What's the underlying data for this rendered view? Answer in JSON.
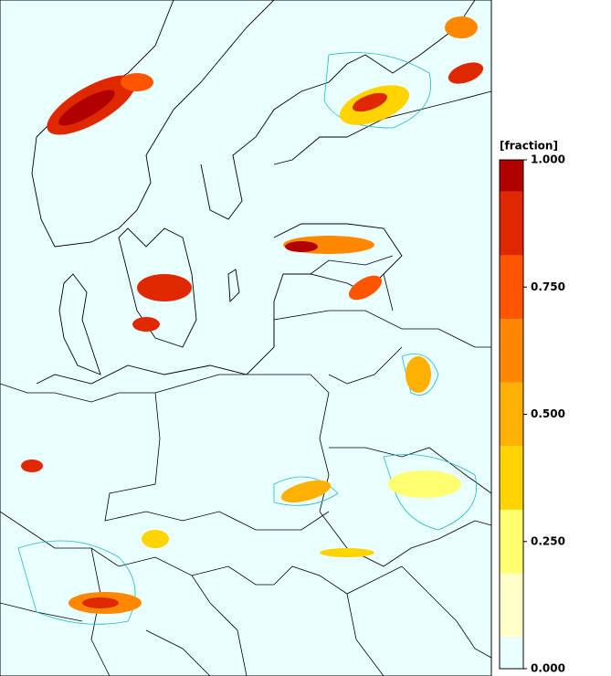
{
  "colorbar": {
    "title": "[fraction]",
    "ticks": [
      {
        "value": 0,
        "label": "0.000"
      },
      {
        "value": 0.25,
        "label": "0.250"
      },
      {
        "value": 0.5,
        "label": "0.500"
      },
      {
        "value": 0.75,
        "label": "0.750"
      },
      {
        "value": 1,
        "label": "1.000"
      }
    ],
    "lim": [
      0,
      1
    ],
    "levels": [
      0,
      0.0625,
      0.1875,
      0.3125,
      0.4375,
      0.5625,
      0.6875,
      0.8125,
      0.9375,
      1
    ],
    "colors": [
      "#eaffff",
      "#ffffc8",
      "#ffff70",
      "#ffd400",
      "#ffb000",
      "#ff8800",
      "#ff5500",
      "#e02800",
      "#b00000"
    ]
  }
}
